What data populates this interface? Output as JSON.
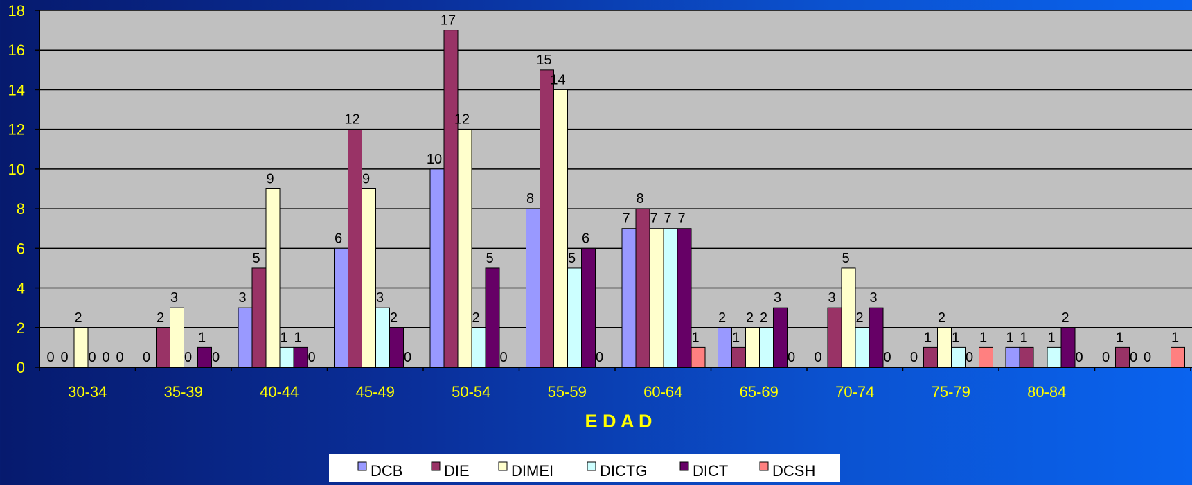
{
  "chart_data": {
    "type": "bar",
    "xlabel": "E D A D",
    "ylabel": "",
    "ylim": [
      0,
      18
    ],
    "yticks": [
      0,
      2,
      4,
      6,
      8,
      10,
      12,
      14,
      16,
      18
    ],
    "grid": true,
    "legend_position": "bottom",
    "categories": [
      "30-34",
      "35-39",
      "40-44",
      "45-49",
      "50-54",
      "55-59",
      "60-64",
      "65-69",
      "70-74",
      "75-79",
      "80-84",
      ""
    ],
    "series": [
      {
        "name": "DCB",
        "color": "#9999ff",
        "values": [
          0,
          0,
          3,
          6,
          10,
          8,
          7,
          2,
          0,
          0,
          1,
          0
        ]
      },
      {
        "name": "DIE",
        "color": "#993366",
        "values": [
          0,
          2,
          5,
          12,
          17,
          15,
          8,
          1,
          3,
          1,
          1,
          1
        ]
      },
      {
        "name": "DIMEI",
        "color": "#ffffcc",
        "values": [
          2,
          3,
          9,
          9,
          12,
          14,
          7,
          2,
          5,
          2,
          null,
          0
        ]
      },
      {
        "name": "DICTG",
        "color": "#ccffff",
        "values": [
          0,
          0,
          1,
          3,
          2,
          5,
          7,
          2,
          2,
          1,
          1,
          0
        ]
      },
      {
        "name": "DICT",
        "color": "#660066",
        "values": [
          0,
          1,
          1,
          2,
          5,
          6,
          7,
          3,
          3,
          0,
          2,
          null
        ]
      },
      {
        "name": "DCSH",
        "color": "#ff8080",
        "values": [
          0,
          0,
          0,
          0,
          0,
          0,
          1,
          0,
          0,
          1,
          0,
          1
        ]
      }
    ],
    "colors": {
      "plot_background": "#c0c0c0",
      "axis_text": "#ffff00",
      "axis_title": "#ffff00",
      "gridline": "#000000",
      "data_label": "#000000",
      "legend_background": "#ffffff"
    }
  }
}
